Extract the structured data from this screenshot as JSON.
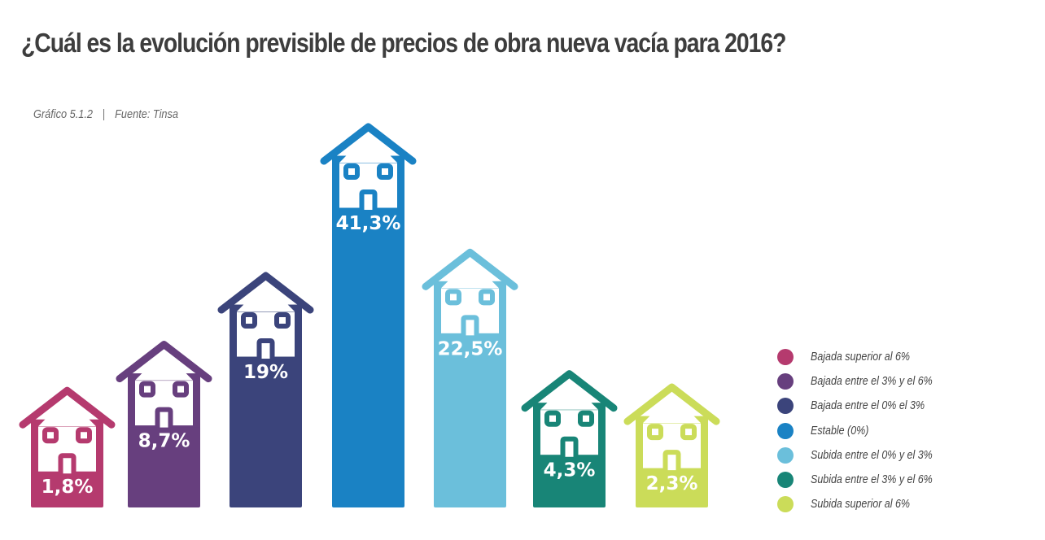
{
  "title": "¿Cuál es la evolución previsible de precios de obra nueva vacía para 2016?",
  "subtitle": {
    "figure": "Gráfico 5.1.2",
    "separator": "|",
    "source": "Fuente: Tinsa"
  },
  "chart_data": {
    "type": "bar",
    "title": "¿Cuál es la evolución previsible de precios de obra nueva vacía para 2016?",
    "xlabel": "",
    "ylabel": "",
    "ylim": [
      0,
      41.3
    ],
    "grid": false,
    "legend_position": "bottom-right",
    "categories": [
      "Bajada superior al 6%",
      "Bajada entre el 3% y el 6%",
      "Bajada entre el 0% el 3%",
      "Estable (0%)",
      "Subida entre el 0% y el 3%",
      "Subida entre el 3% y el 6%",
      "Subida superior al 6%"
    ],
    "values": [
      1.8,
      8.7,
      19,
      41.3,
      22.5,
      4.3,
      2.3
    ],
    "data_labels": [
      "1,8%",
      "8,7%",
      "19%",
      "41,3%",
      "22,5%",
      "4,3%",
      "2,3%"
    ],
    "colors": [
      "#b53a6e",
      "#673f7e",
      "#3b447b",
      "#1a82c4",
      "#6bbfdb",
      "#188577",
      "#cbdc59"
    ],
    "mark": "house-pictogram"
  },
  "legend": [
    {
      "label": "Bajada superior al 6%",
      "color": "#b53a6e"
    },
    {
      "label": "Bajada entre el 3% y el 6%",
      "color": "#673f7e"
    },
    {
      "label": "Bajada entre el 0% el 3%",
      "color": "#3b447b"
    },
    {
      "label": "Estable (0%)",
      "color": "#1a82c4"
    },
    {
      "label": "Subida entre el 0% y el 3%",
      "color": "#6bbfdb"
    },
    {
      "label": "Subida entre el 3% y el 6%",
      "color": "#188577"
    },
    {
      "label": "Subida superior al 6%",
      "color": "#cbdc59"
    }
  ]
}
